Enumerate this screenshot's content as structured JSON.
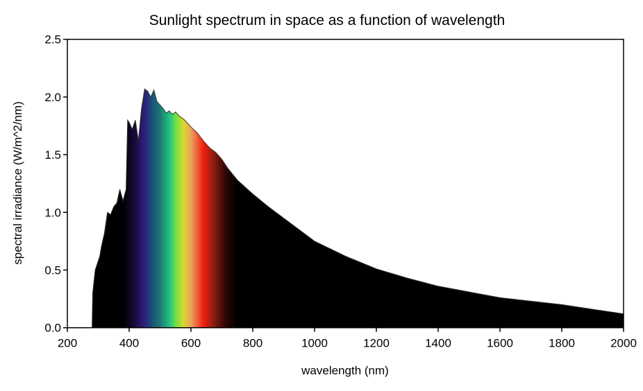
{
  "chart_data": {
    "type": "area",
    "title": "Sunlight spectrum in space as a function of wavelength",
    "xlabel": "wavelength (nm)",
    "ylabel": "spectral irradiance (W/m^2/nm)",
    "xlim": [
      200,
      2000
    ],
    "ylim": [
      0,
      2.5
    ],
    "xticks": [
      200,
      400,
      600,
      800,
      1000,
      1200,
      1400,
      1600,
      1800,
      2000
    ],
    "yticks": [
      "0.0",
      "0.5",
      "1.0",
      "1.5",
      "2.0",
      "2.5"
    ],
    "grid": false,
    "fill": "visible-spectrum gradient (380–750 nm), black elsewhere",
    "x": [
      280,
      282,
      290,
      300,
      305,
      310,
      320,
      330,
      340,
      350,
      360,
      370,
      380,
      390,
      395,
      400,
      410,
      420,
      430,
      440,
      450,
      460,
      470,
      480,
      490,
      500,
      510,
      520,
      530,
      540,
      550,
      560,
      570,
      580,
      590,
      600,
      620,
      640,
      660,
      680,
      700,
      720,
      750,
      800,
      850,
      900,
      950,
      1000,
      1100,
      1200,
      1300,
      1400,
      1500,
      1600,
      1700,
      1800,
      1900,
      2000
    ],
    "y": [
      0,
      0.3,
      0.5,
      0.58,
      0.62,
      0.7,
      0.82,
      1.0,
      0.98,
      1.05,
      1.08,
      1.2,
      1.1,
      1.2,
      1.8,
      1.78,
      1.72,
      1.8,
      1.62,
      1.9,
      2.07,
      2.05,
      2.0,
      2.06,
      1.96,
      1.93,
      1.9,
      1.86,
      1.88,
      1.85,
      1.87,
      1.84,
      1.82,
      1.8,
      1.77,
      1.74,
      1.69,
      1.62,
      1.56,
      1.52,
      1.46,
      1.38,
      1.28,
      1.16,
      1.05,
      0.95,
      0.85,
      0.75,
      0.62,
      0.51,
      0.43,
      0.36,
      0.31,
      0.26,
      0.23,
      0.2,
      0.16,
      0.12
    ]
  },
  "colors": {
    "spectrum_stops": [
      {
        "nm": 380,
        "color": "#000000"
      },
      {
        "nm": 420,
        "color": "#1a0a40"
      },
      {
        "nm": 445,
        "color": "#2e1a7a"
      },
      {
        "nm": 470,
        "color": "#1a4a78"
      },
      {
        "nm": 500,
        "color": "#1a7a70"
      },
      {
        "nm": 530,
        "color": "#20c080"
      },
      {
        "nm": 550,
        "color": "#70e040"
      },
      {
        "nm": 575,
        "color": "#d8d830"
      },
      {
        "nm": 600,
        "color": "#f0a060"
      },
      {
        "nm": 640,
        "color": "#f02010"
      },
      {
        "nm": 670,
        "color": "#902010"
      },
      {
        "nm": 710,
        "color": "#300808"
      },
      {
        "nm": 750,
        "color": "#000000"
      }
    ],
    "background": "#ffffff",
    "fill": "#000000"
  }
}
